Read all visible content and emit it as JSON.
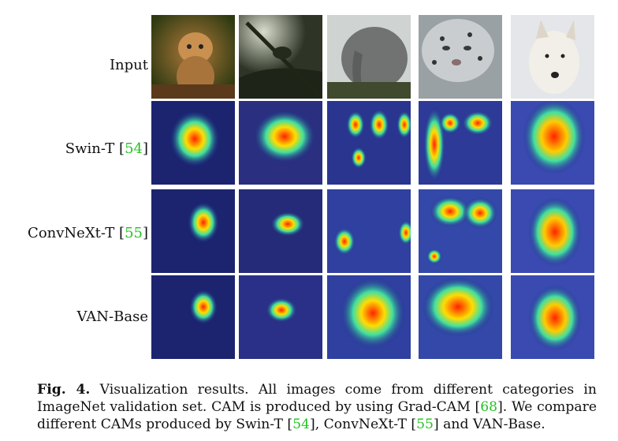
{
  "rows": [
    {
      "label": "Input",
      "ref": ""
    },
    {
      "label": "Swin-T [",
      "ref": "54",
      "close": "]"
    },
    {
      "label": "ConvNeXt-T [",
      "ref": "55",
      "close": "]"
    },
    {
      "label": "VAN-Base",
      "ref": ""
    }
  ],
  "columns": [
    "lynx-kitten",
    "tree-animal",
    "elephant",
    "snow-leopard",
    "white-wolf"
  ],
  "caption": {
    "figlabel": "Fig. 4.",
    "text1": " Visualization results. All images come from different categories in ImageNet validation set. CAM is produced by using Grad-CAM [",
    "ref1": "68",
    "text2": "]. We compare different CAMs produced by Swin-T [",
    "ref2": "54",
    "text3": "], ConvNeXt-T [",
    "ref3": "55",
    "text4": "] and VAN-Base."
  },
  "colors": {
    "ref": "#21c421",
    "cam_hot": "#ff2a00",
    "cam_cold": "#1a1f8a"
  }
}
